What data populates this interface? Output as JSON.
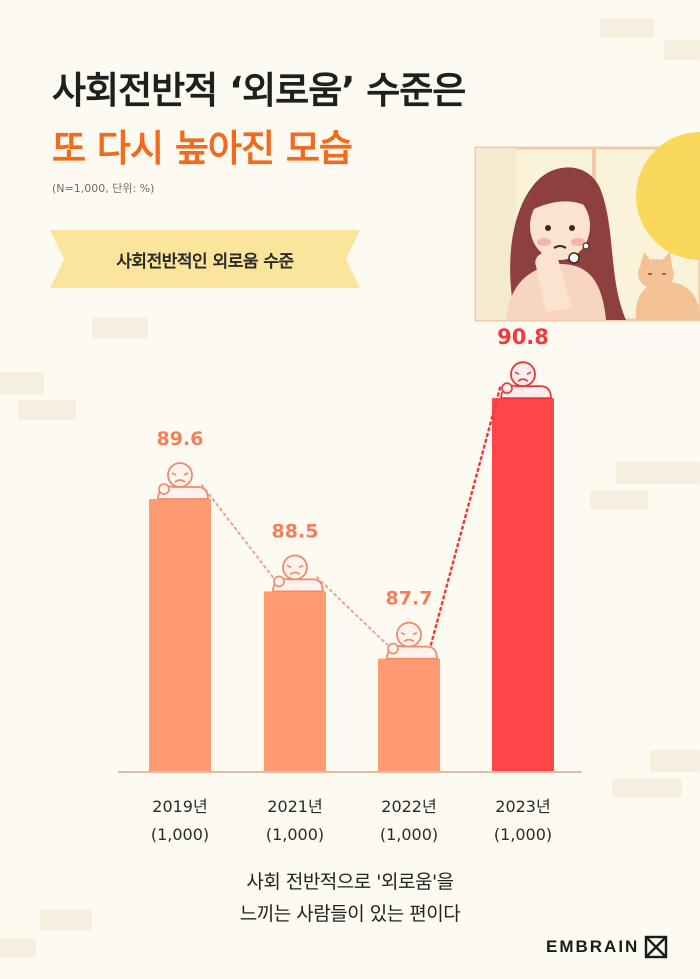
{
  "header": {
    "title_line1": "사회전반적 ‘외로움’ 수준은",
    "title_line2": "또 다시 높아진 모습",
    "note": "(N=1,000, 단위: %)"
  },
  "banner": {
    "label": "사회전반적인 외로움 수준"
  },
  "chart_data": {
    "type": "bar",
    "title": "사회전반적인 외로움 수준",
    "categories": [
      "2019년",
      "2021년",
      "2022년",
      "2023년"
    ],
    "sample_labels": [
      "(1,000)",
      "(1,000)",
      "(1,000)",
      "(1,000)"
    ],
    "values": [
      89.6,
      88.5,
      87.7,
      90.8
    ],
    "highlight_index": 3,
    "unit": "%",
    "grid": false,
    "legend": "none"
  },
  "colors": {
    "bar": "#ff9a73",
    "bar_highlight": "#ff444a",
    "label": "#f47f5a",
    "label_highlight": "#f03a3e",
    "title_accent": "#f26a1c",
    "banner": "#fbe59a",
    "baseline": "#e8b9a3"
  },
  "summary": {
    "line1": "사회 전반적으로 '외로움'을",
    "line2": "느끼는 사람들이 있는 편이다"
  },
  "brand": {
    "name": "EMBRAIN",
    "icon": "embrain-logo-icon"
  }
}
